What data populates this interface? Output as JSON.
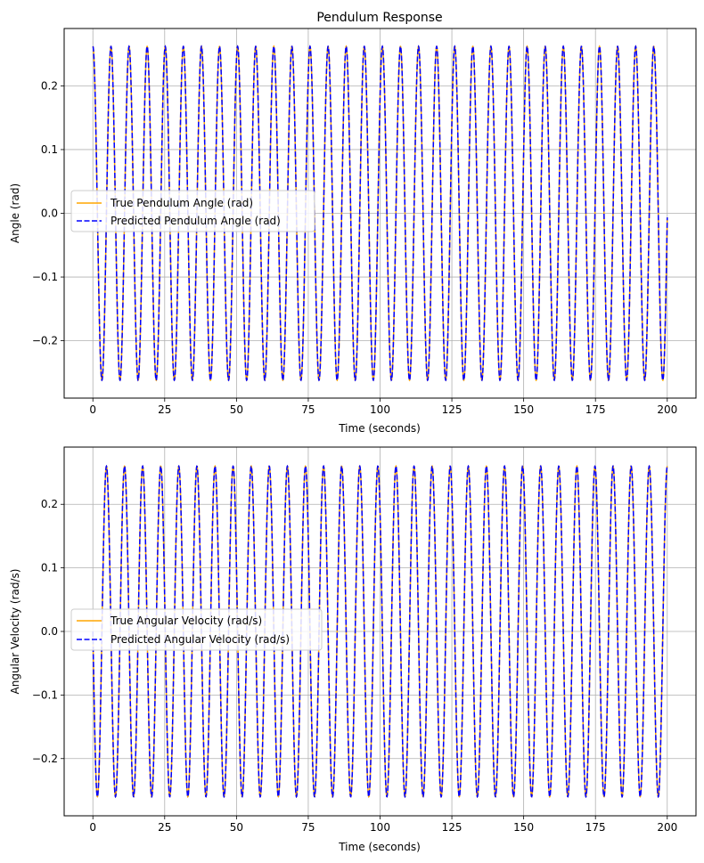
{
  "chart_data": [
    {
      "type": "line",
      "title": "Pendulum Response",
      "xlabel": "Time (seconds)",
      "ylabel": "Angle (rad)",
      "xlim": [
        -10,
        210
      ],
      "ylim": [
        -0.29,
        0.29
      ],
      "xticks": [
        0,
        25,
        50,
        75,
        100,
        125,
        150,
        175,
        200
      ],
      "yticks": [
        -0.2,
        -0.1,
        0.0,
        0.1,
        0.2
      ],
      "ytick_labels": [
        "−0.2",
        "−0.1",
        "0.0",
        "0.1",
        "0.2"
      ],
      "grid": true,
      "legend_position": "center-left",
      "x_range": [
        0,
        200
      ],
      "period": 6.3,
      "series": [
        {
          "name": "True Pendulum Angle (rad)",
          "color": "#ffa500",
          "style": "solid",
          "waveform": "cos",
          "amplitude": 0.262
        },
        {
          "name": "Predicted Pendulum Angle (rad)",
          "color": "#0000ff",
          "style": "dashed",
          "waveform": "cos",
          "amplitude": 0.262
        }
      ]
    },
    {
      "type": "line",
      "title": "",
      "xlabel": "Time (seconds)",
      "ylabel": "Angular Velocity (rad/s)",
      "xlim": [
        -10,
        210
      ],
      "ylim": [
        -0.29,
        0.29
      ],
      "xticks": [
        0,
        25,
        50,
        75,
        100,
        125,
        150,
        175,
        200
      ],
      "yticks": [
        -0.2,
        -0.1,
        0.0,
        0.1,
        0.2
      ],
      "ytick_labels": [
        "−0.2",
        "−0.1",
        "0.0",
        "0.1",
        "0.2"
      ],
      "grid": true,
      "legend_position": "center-left",
      "x_range": [
        0,
        200
      ],
      "period": 6.3,
      "series": [
        {
          "name": "True Angular Velocity (rad/s)",
          "color": "#ffa500",
          "style": "solid",
          "waveform": "-sin",
          "amplitude": 0.26
        },
        {
          "name": "Predicted Angular Velocity (rad/s)",
          "color": "#0000ff",
          "style": "dashed",
          "waveform": "-sin",
          "amplitude": 0.26
        }
      ]
    }
  ]
}
